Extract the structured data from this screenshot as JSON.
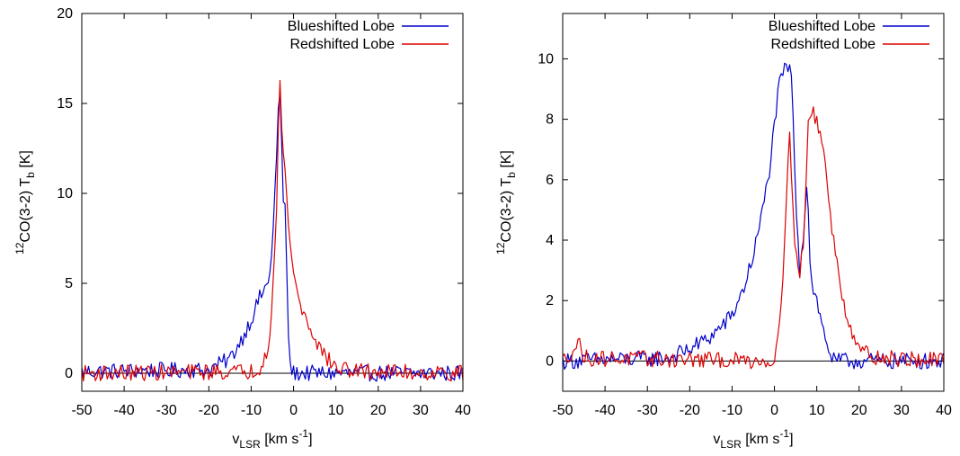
{
  "chart_data": [
    {
      "type": "line",
      "xlabel": {
        "main": "v",
        "sub": "LSR",
        "post": " [km s",
        "sup": "-1",
        "end": "]"
      },
      "ylabel": {
        "pre_sup": "12",
        "main": "CO(3-2) T",
        "sub": "b",
        "end": " [K]"
      },
      "xlim": [
        -50,
        40
      ],
      "ylim": [
        -1,
        20
      ],
      "xticks": [
        -50,
        -40,
        -30,
        -20,
        -10,
        0,
        10,
        20,
        30,
        40
      ],
      "yticks": [
        0,
        5,
        10,
        15,
        20
      ],
      "zero_line": true,
      "legend_position": "top-right",
      "series": [
        {
          "name": "Blueshifted Lobe",
          "color": "#0000cc",
          "profile": {
            "noise": 0.35,
            "wings": [
              [
                -3.2,
                5.0,
                3.2,
                0.0
              ]
            ],
            "peaks": [
              [
                -3.2,
                11.6,
                0.9
              ]
            ],
            "cutoff": -2.2,
            "after": [
              [
                0.0,
                0.0,
                1.0
              ]
            ]
          },
          "points": [
            [
              -50,
              0.1
            ],
            [
              -20,
              0.2
            ],
            [
              -15,
              0.8
            ],
            [
              -12,
              2.0
            ],
            [
              -10,
              3.0
            ],
            [
              -8,
              4.2
            ],
            [
              -6,
              5.0
            ],
            [
              -5,
              7.0
            ],
            [
              -4,
              12.0
            ],
            [
              -3.3,
              16.5
            ],
            [
              -3,
              14.0
            ],
            [
              -2.5,
              10.0
            ],
            [
              -2,
              9.0
            ],
            [
              -1.5,
              5.0
            ],
            [
              -1,
              0.5
            ],
            [
              0,
              0.0
            ],
            [
              40,
              0.0
            ]
          ]
        },
        {
          "name": "Redshifted Lobe",
          "color": "#dd0000",
          "points": [
            [
              -50,
              0.0
            ],
            [
              -10,
              0.1
            ],
            [
              -8,
              0.3
            ],
            [
              -6,
              1.5
            ],
            [
              -5,
              4.0
            ],
            [
              -4,
              9.0
            ],
            [
              -3.3,
              17.0
            ],
            [
              -3,
              14.0
            ],
            [
              -2,
              11.5
            ],
            [
              -1,
              7.5
            ],
            [
              0,
              5.5
            ],
            [
              2,
              3.5
            ],
            [
              4,
              2.5
            ],
            [
              6,
              1.5
            ],
            [
              8,
              0.8
            ],
            [
              10,
              0.3
            ],
            [
              15,
              0.1
            ],
            [
              40,
              0.0
            ]
          ]
        }
      ]
    },
    {
      "type": "line",
      "xlabel": {
        "main": "v",
        "sub": "LSR",
        "post": " [km s",
        "sup": "-1",
        "end": "]"
      },
      "ylabel": {
        "pre_sup": "12",
        "main": "CO(3-2) T",
        "sub": "b",
        "end": " [K]"
      },
      "xlim": [
        -50,
        40
      ],
      "ylim": [
        -1,
        11.5
      ],
      "xticks": [
        -50,
        -40,
        -30,
        -20,
        -10,
        0,
        10,
        20,
        30,
        40
      ],
      "yticks": [
        0,
        2,
        4,
        6,
        8,
        10
      ],
      "zero_line": true,
      "legend_position": "top-right",
      "series": [
        {
          "name": "Blueshifted Lobe",
          "color": "#0000cc",
          "points": [
            [
              -50,
              0.0
            ],
            [
              -25,
              0.1
            ],
            [
              -20,
              0.4
            ],
            [
              -15,
              0.8
            ],
            [
              -10,
              1.5
            ],
            [
              -7,
              2.5
            ],
            [
              -5,
              3.5
            ],
            [
              -3,
              4.8
            ],
            [
              -1,
              6.5
            ],
            [
              0,
              7.8
            ],
            [
              1,
              9.0
            ],
            [
              2,
              9.5
            ],
            [
              3,
              9.8
            ],
            [
              4,
              9.5
            ],
            [
              5,
              5.5
            ],
            [
              6,
              3.0
            ],
            [
              7,
              4.5
            ],
            [
              7.7,
              6.1
            ],
            [
              8.5,
              3.0
            ],
            [
              9,
              2.5
            ],
            [
              10,
              2.0
            ],
            [
              11,
              1.3
            ],
            [
              12,
              0.8
            ],
            [
              13,
              0.3
            ],
            [
              14,
              0.0
            ],
            [
              40,
              0.0
            ]
          ]
        },
        {
          "name": "Redshifted Lobe",
          "color": "#dd0000",
          "points": [
            [
              -50,
              0.0
            ],
            [
              -46,
              0.6
            ],
            [
              -45,
              0.1
            ],
            [
              0,
              0.0
            ],
            [
              1,
              1.0
            ],
            [
              2,
              3.0
            ],
            [
              3,
              6.0
            ],
            [
              3.6,
              7.3
            ],
            [
              4.5,
              5.0
            ],
            [
              5,
              3.5
            ],
            [
              6,
              3.0
            ],
            [
              7,
              4.0
            ],
            [
              8,
              8.0
            ],
            [
              9,
              8.2
            ],
            [
              10,
              8.0
            ],
            [
              11,
              7.5
            ],
            [
              12,
              6.5
            ],
            [
              13,
              5.0
            ],
            [
              15,
              3.0
            ],
            [
              17,
              1.5
            ],
            [
              19,
              0.8
            ],
            [
              21,
              0.3
            ],
            [
              25,
              0.1
            ],
            [
              40,
              0.0
            ]
          ]
        }
      ]
    }
  ]
}
